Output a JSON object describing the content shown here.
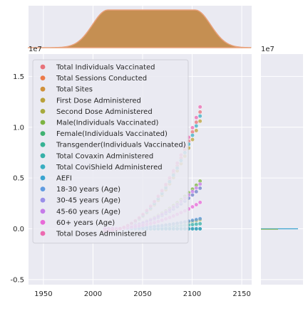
{
  "chart_data": {
    "type": "scatter",
    "title": "",
    "xlabel": "",
    "ylabel": "",
    "x_offset_label": "",
    "y_scale_label": "1e7",
    "y_marg_scale_label": "1e7",
    "xlim": [
      1935,
      2160
    ],
    "ylim": [
      -0.55,
      1.72
    ],
    "x_ticks": [
      1950,
      2000,
      2050,
      2100,
      2150
    ],
    "y_ticks": [
      -0.5,
      0.0,
      0.5,
      1.0,
      1.5
    ],
    "grid": true,
    "legend_position": "upper-left",
    "series": [
      {
        "name": "Total Individuals Vaccinated",
        "color": "#e8727a",
        "values_end": 1.17
      },
      {
        "name": "Total Sessions Conducted",
        "color": "#ec7a4a",
        "values_end": 0.0
      },
      {
        "name": "Total Sites",
        "color": "#d0913a",
        "values_end": 0.0
      },
      {
        "name": "First Dose Administered",
        "color": "#b9a13a",
        "values_end": 1.08
      },
      {
        "name": "Second Dose Administered",
        "color": "#a6aa3e",
        "values_end": 0.09
      },
      {
        "name": "Male(Individuals Vaccinated)",
        "color": "#7cb342",
        "values_end": 0.47
      },
      {
        "name": "Female(Individuals Vaccinated)",
        "color": "#3fb271",
        "values_end": 0.4
      },
      {
        "name": "Transgender(Individuals Vaccinated)",
        "color": "#36b294",
        "values_end": 0.0
      },
      {
        "name": "Total Covaxin Administered",
        "color": "#35b0a8",
        "values_end": 0.05
      },
      {
        "name": "Total CoviShield Administered",
        "color": "#38aec1",
        "values_end": 1.13
      },
      {
        "name": "AEFI",
        "color": "#3aa4d0",
        "values_end": 0.0
      },
      {
        "name": "18-30 years (Age)",
        "color": "#5f9be0",
        "values_end": 0.1
      },
      {
        "name": "30-45 years (Age)",
        "color": "#9a8fe8",
        "values_end": 0.4
      },
      {
        "name": "45-60 years (Age)",
        "color": "#c57be8",
        "values_end": 0.44
      },
      {
        "name": "60+ years (Age)",
        "color": "#e86ad8",
        "values_end": 0.26
      },
      {
        "name": "Total Doses Administered",
        "color": "#ec6ab0",
        "values_end": 1.22
      }
    ]
  },
  "colors": {
    "axes_bg": "#eaeaf2",
    "grid": "#ffffff",
    "text": "#262626",
    "density_fill": "#c58f52",
    "density_edge": "#e8a07a"
  }
}
